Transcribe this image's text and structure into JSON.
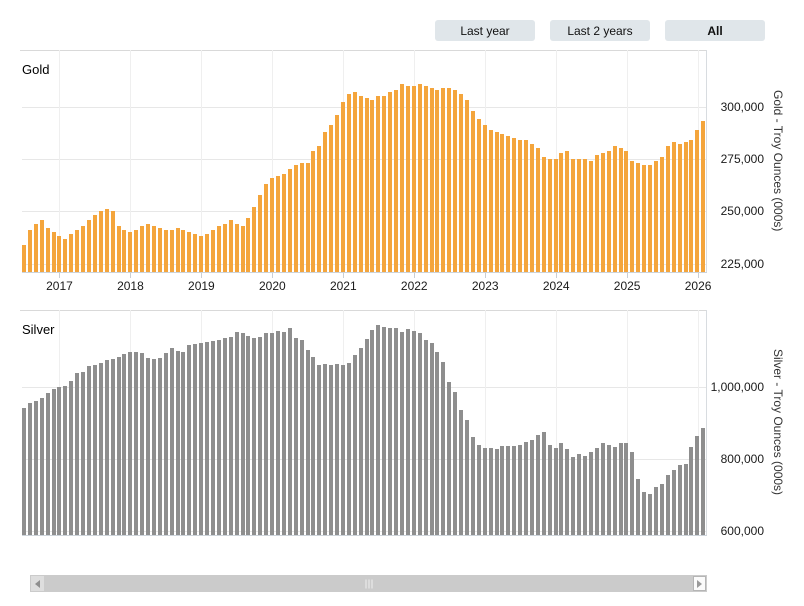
{
  "toolbar": {
    "buttons": [
      {
        "label": "Last year",
        "active": false
      },
      {
        "label": "Last 2 years",
        "active": false
      },
      {
        "label": "All",
        "active": true
      }
    ]
  },
  "scrollbar": {
    "left_button_icon": "scroll-left-arrow-icon",
    "right_button_icon": "scroll-right-arrow-icon",
    "grip_icon": "drag-grip-icon"
  },
  "chart_data": [
    {
      "type": "bar",
      "title": "Gold",
      "ylabel": "Gold - Troy Ounces (000s)",
      "bar_color": "#F4A53C",
      "frequency": "monthly",
      "x_start": "2016-07",
      "x_end": "2026-02",
      "xticks": [
        "2017",
        "2018",
        "2019",
        "2020",
        "2021",
        "2022",
        "2023",
        "2024",
        "2025",
        "2026"
      ],
      "yticks": [
        {
          "value": 225000,
          "label": "225,000"
        },
        {
          "value": 250000,
          "label": "250,000"
        },
        {
          "value": 275000,
          "label": "275,000"
        },
        {
          "value": 300000,
          "label": "300,000"
        }
      ],
      "ylim": [
        221000,
        327000
      ],
      "grid": true,
      "x_labels_visible": true,
      "values": [
        234000,
        241000,
        244000,
        246000,
        242000,
        240000,
        238000,
        237000,
        239000,
        241000,
        243000,
        246000,
        248000,
        250000,
        251000,
        250000,
        243000,
        241000,
        240000,
        241000,
        243000,
        244000,
        243000,
        242000,
        241000,
        241000,
        242000,
        241000,
        240000,
        239000,
        238000,
        239000,
        241000,
        243000,
        244000,
        246000,
        244000,
        243000,
        247000,
        252000,
        258000,
        263000,
        266000,
        267000,
        268000,
        270000,
        272000,
        273000,
        273000,
        279000,
        281000,
        288000,
        291000,
        296000,
        302000,
        306000,
        307000,
        305000,
        304000,
        303000,
        305000,
        305000,
        307000,
        308000,
        311000,
        310000,
        310000,
        311000,
        310000,
        309000,
        308000,
        309000,
        309000,
        308000,
        306000,
        303000,
        298000,
        294000,
        291000,
        289000,
        288000,
        287000,
        286000,
        285000,
        284000,
        284000,
        282000,
        280000,
        276000,
        275000,
        275000,
        278000,
        279000,
        275000,
        275000,
        275000,
        274000,
        277000,
        278000,
        279000,
        281000,
        280000,
        279000,
        274000,
        273000,
        272000,
        272000,
        274000,
        276000,
        281000,
        283000,
        282000,
        283000,
        284000,
        289000,
        293000
      ]
    },
    {
      "type": "bar",
      "title": "Silver",
      "ylabel": "Silver - Troy Ounces (000s)",
      "bar_color": "#8E8E8E",
      "frequency": "monthly",
      "x_start": "2016-07",
      "x_end": "2026-02",
      "xticks": [
        "2017",
        "2018",
        "2019",
        "2020",
        "2021",
        "2022",
        "2023",
        "2024",
        "2025",
        "2026"
      ],
      "yticks": [
        {
          "value": 600000,
          "label": "600,000"
        },
        {
          "value": 800000,
          "label": "800,000"
        },
        {
          "value": 1000000,
          "label": "1,000,000"
        }
      ],
      "ylim": [
        589000,
        1214000
      ],
      "grid": true,
      "x_labels_visible": false,
      "values": [
        942000,
        956000,
        961000,
        969000,
        983000,
        994000,
        1000000,
        1003000,
        1017000,
        1039000,
        1042000,
        1058000,
        1061000,
        1067000,
        1075000,
        1078000,
        1083000,
        1092000,
        1097000,
        1097000,
        1094000,
        1081000,
        1078000,
        1081000,
        1094000,
        1108000,
        1100000,
        1097000,
        1117000,
        1119000,
        1122000,
        1125000,
        1128000,
        1131000,
        1136000,
        1139000,
        1153000,
        1150000,
        1142000,
        1136000,
        1139000,
        1150000,
        1150000,
        1156000,
        1153000,
        1164000,
        1136000,
        1131000,
        1103000,
        1083000,
        1061000,
        1064000,
        1061000,
        1064000,
        1061000,
        1067000,
        1089000,
        1108000,
        1133000,
        1158000,
        1172000,
        1167000,
        1164000,
        1164000,
        1153000,
        1161000,
        1156000,
        1150000,
        1131000,
        1122000,
        1097000,
        1069000,
        1014000,
        986000,
        936000,
        908000,
        861000,
        839000,
        831000,
        831000,
        828000,
        836000,
        836000,
        836000,
        839000,
        847000,
        853000,
        867000,
        875000,
        839000,
        831000,
        844000,
        828000,
        806000,
        814000,
        808000,
        819000,
        831000,
        844000,
        839000,
        833000,
        844000,
        844000,
        819000,
        744000,
        708000,
        703000,
        722000,
        731000,
        756000,
        769000,
        783000,
        786000,
        833000,
        864000,
        886000
      ]
    }
  ]
}
